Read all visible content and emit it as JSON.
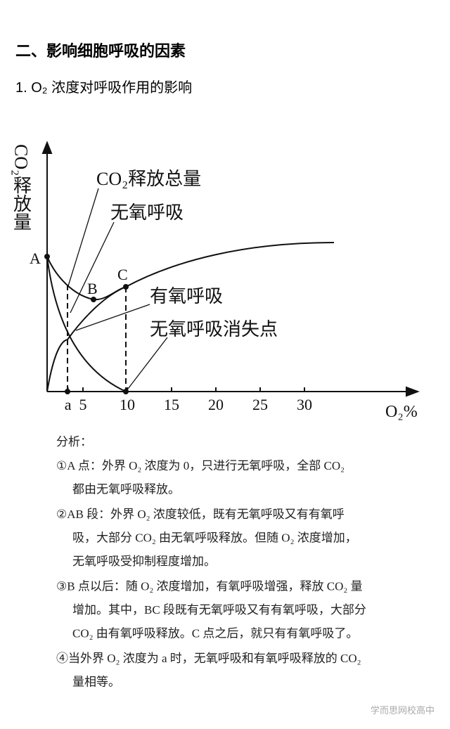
{
  "heading": "二、影响细胞呼吸的因素",
  "subheading": "1. O₂ 浓度对呼吸作用的影响",
  "chart": {
    "ylabel": "CO₂释放量",
    "xlabel": "O₂%",
    "labels": {
      "total": "CO₂释放总量",
      "anaerobic": "无氧呼吸",
      "aerobic": "有氧呼吸",
      "vanish": "无氧呼吸消失点",
      "A": "A",
      "B": "B",
      "C": "C"
    },
    "xlim": [
      0,
      40
    ],
    "xticks": [
      {
        "value": 3.3,
        "label": "a"
      },
      5,
      10,
      15,
      20,
      25,
      30
    ]
  },
  "analysis": {
    "title": "分析：",
    "paragraphs": [
      {
        "lines": [
          "①A 点：外界 O₂ 浓度为 0，只进行无氧呼吸，全部 CO₂",
          "都由无氧呼吸释放。"
        ]
      },
      {
        "lines": [
          "②AB 段：外界 O₂ 浓度较低，既有无氧呼吸又有有氧呼",
          "吸，大部分 CO₂ 由无氧呼吸释放。但随 O₂ 浓度增加，",
          "无氧呼吸受抑制程度增加。"
        ]
      },
      {
        "lines": [
          "③B 点以后：随 O₂ 浓度增加，有氧呼吸增强，释放 CO₂ 量",
          "增加。其中，BC 段既有无氧呼吸又有有氧呼吸，大部分",
          "CO₂ 由有氧呼吸释放。C 点之后，就只有有氧呼吸了。"
        ]
      },
      {
        "lines": [
          "④当外界 O₂ 浓度为 a 时，无氧呼吸和有氧呼吸释放的 CO₂",
          "量相等。"
        ]
      }
    ]
  },
  "watermark": "学而思网校高中"
}
